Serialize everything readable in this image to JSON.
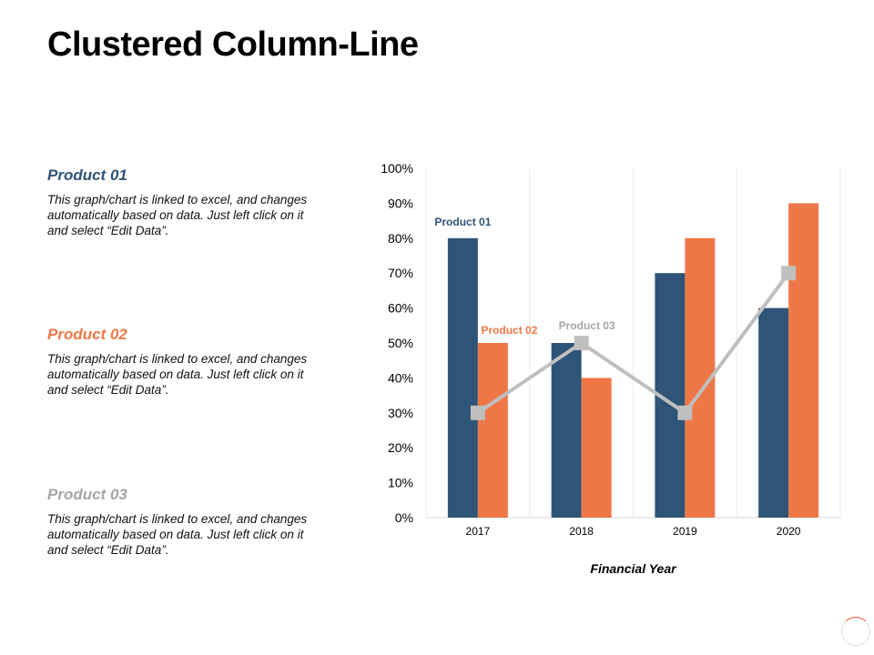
{
  "title": "Clustered Column-Line",
  "products": [
    {
      "heading": "Product 01",
      "description": "This graph/chart is linked to excel, and changes automatically based on data. Just left click on it and select “Edit Data”.",
      "color": "#2e5477"
    },
    {
      "heading": "Product 02",
      "description": "This graph/chart is linked to excel, and changes automatically based on data. Just left click on it and select “Edit Data”.",
      "color": "#ef7747"
    },
    {
      "heading": "Product 03",
      "description": "This graph/chart is linked to excel, and changes automatically based on data. Just left click on it and select “Edit Data”.",
      "color": "#a6a6a6"
    }
  ],
  "chart_data": {
    "type": "bar",
    "title": "",
    "xlabel": "Financial Year",
    "ylabel": "",
    "categories": [
      "2017",
      "2018",
      "2019",
      "2020"
    ],
    "ylim": [
      0,
      100
    ],
    "ytick_step": 10,
    "ytick_suffix": "%",
    "grid": "vertical",
    "legend": "none",
    "series": [
      {
        "name": "Product 01",
        "kind": "bar",
        "values": [
          80,
          50,
          70,
          60
        ],
        "color": "#2e5477",
        "label_color": "#2e5477"
      },
      {
        "name": "Product 02",
        "kind": "bar",
        "values": [
          50,
          40,
          80,
          90
        ],
        "color": "#ef7747",
        "label_color": "#ef7747"
      },
      {
        "name": "Product 03",
        "kind": "line",
        "values": [
          30,
          50,
          30,
          70
        ],
        "color": "#bfbfbf",
        "label_color": "#a6a6a6"
      }
    ]
  }
}
